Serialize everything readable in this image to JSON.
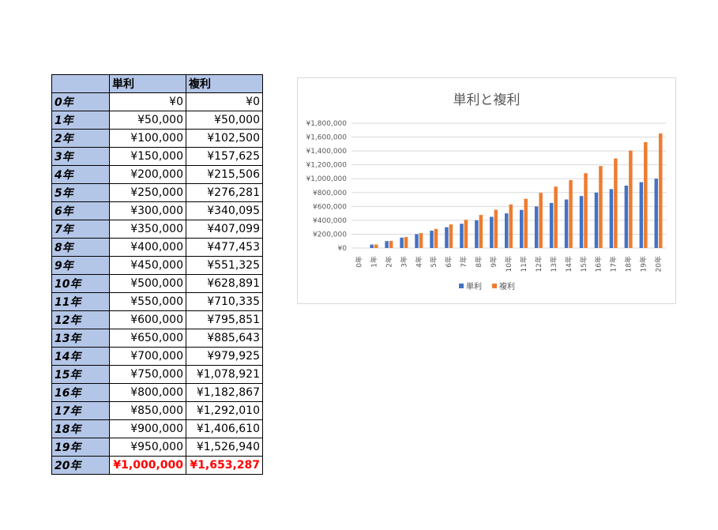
{
  "table": {
    "header": [
      "",
      "単利",
      "複利"
    ],
    "rows": [
      {
        "year": "0年",
        "simple": "¥0",
        "compound": "¥0"
      },
      {
        "year": "1年",
        "simple": "¥50,000",
        "compound": "¥50,000"
      },
      {
        "year": "2年",
        "simple": "¥100,000",
        "compound": "¥102,500"
      },
      {
        "year": "3年",
        "simple": "¥150,000",
        "compound": "¥157,625"
      },
      {
        "year": "4年",
        "simple": "¥200,000",
        "compound": "¥215,506"
      },
      {
        "year": "5年",
        "simple": "¥250,000",
        "compound": "¥276,281"
      },
      {
        "year": "6年",
        "simple": "¥300,000",
        "compound": "¥340,095"
      },
      {
        "year": "7年",
        "simple": "¥350,000",
        "compound": "¥407,099"
      },
      {
        "year": "8年",
        "simple": "¥400,000",
        "compound": "¥477,453"
      },
      {
        "year": "9年",
        "simple": "¥450,000",
        "compound": "¥551,325"
      },
      {
        "year": "10年",
        "simple": "¥500,000",
        "compound": "¥628,891"
      },
      {
        "year": "11年",
        "simple": "¥550,000",
        "compound": "¥710,335"
      },
      {
        "year": "12年",
        "simple": "¥600,000",
        "compound": "¥795,851"
      },
      {
        "year": "13年",
        "simple": "¥650,000",
        "compound": "¥885,643"
      },
      {
        "year": "14年",
        "simple": "¥700,000",
        "compound": "¥979,925"
      },
      {
        "year": "15年",
        "simple": "¥750,000",
        "compound": "¥1,078,921"
      },
      {
        "year": "16年",
        "simple": "¥800,000",
        "compound": "¥1,182,867"
      },
      {
        "year": "17年",
        "simple": "¥850,000",
        "compound": "¥1,292,010"
      },
      {
        "year": "18年",
        "simple": "¥900,000",
        "compound": "¥1,406,610"
      },
      {
        "year": "19年",
        "simple": "¥950,000",
        "compound": "¥1,526,940"
      },
      {
        "year": "20年",
        "simple": "¥1,000,000",
        "compound": "¥1,653,287"
      }
    ],
    "highlight_color": "#ff0000",
    "header_bg": "#b4c6e7"
  },
  "chart_data": {
    "type": "bar",
    "title": "単利と複利",
    "xlabel": "",
    "ylabel": "",
    "categories": [
      "0年",
      "1年",
      "2年",
      "3年",
      "4年",
      "5年",
      "6年",
      "7年",
      "8年",
      "9年",
      "10年",
      "11年",
      "12年",
      "13年",
      "14年",
      "15年",
      "16年",
      "17年",
      "18年",
      "19年",
      "20年"
    ],
    "series": [
      {
        "name": "単利",
        "color": "#4472c4",
        "values": [
          0,
          50000,
          100000,
          150000,
          200000,
          250000,
          300000,
          350000,
          400000,
          450000,
          500000,
          550000,
          600000,
          650000,
          700000,
          750000,
          800000,
          850000,
          900000,
          950000,
          1000000
        ]
      },
      {
        "name": "複利",
        "color": "#ed7d31",
        "values": [
          0,
          50000,
          102500,
          157625,
          215506,
          276281,
          340095,
          407099,
          477453,
          551325,
          628891,
          710335,
          795851,
          885643,
          979925,
          1078921,
          1182867,
          1292010,
          1406610,
          1526940,
          1653287
        ]
      }
    ],
    "ylim": [
      0,
      1800000
    ],
    "yticks": [
      0,
      200000,
      400000,
      600000,
      800000,
      1000000,
      1200000,
      1400000,
      1600000,
      1800000
    ],
    "ytick_labels": [
      "¥0",
      "¥200,000",
      "¥400,000",
      "¥600,000",
      "¥800,000",
      "¥1,000,000",
      "¥1,200,000",
      "¥1,400,000",
      "¥1,600,000",
      "¥1,800,000"
    ],
    "grid": true,
    "legend_position": "bottom"
  }
}
